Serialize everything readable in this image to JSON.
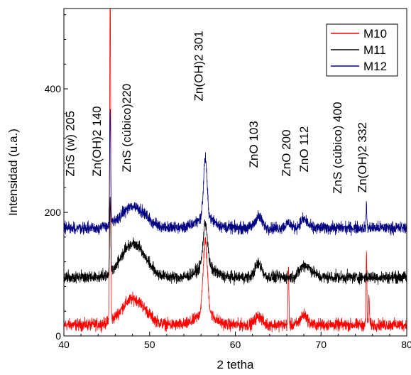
{
  "chart_data": {
    "type": "line",
    "title": "",
    "xlabel": "2 tetha",
    "ylabel": "Intensidad (u.a.)",
    "xlim": [
      40,
      80
    ],
    "ylim": [
      0,
      530
    ],
    "x_ticks": [
      40,
      50,
      60,
      70,
      80
    ],
    "y_ticks": [
      0,
      200,
      400
    ],
    "legend": {
      "placement": "top-right",
      "entries": [
        "M10",
        "M11",
        "M12"
      ]
    },
    "series": [
      {
        "name": "M10",
        "color": "#ff0000",
        "baseline": 18,
        "noise": 6,
        "peaks": [
          [
            45.4,
            540,
            0.06
          ],
          [
            48.1,
            42,
            1.4
          ],
          [
            56.5,
            115,
            0.25
          ],
          [
            56.5,
            20,
            1.0
          ],
          [
            62.7,
            14,
            0.4
          ],
          [
            66.2,
            95,
            0.05
          ],
          [
            68.0,
            16,
            0.4
          ],
          [
            75.3,
            118,
            0.05
          ],
          [
            75.6,
            45,
            0.05
          ]
        ]
      },
      {
        "name": "M11",
        "color": "#000000",
        "baseline": 95,
        "noise": 6,
        "peaks": [
          [
            45.4,
            120,
            0.06
          ],
          [
            48.1,
            55,
            1.4
          ],
          [
            56.5,
            70,
            0.25
          ],
          [
            56.5,
            18,
            1.0
          ],
          [
            62.7,
            22,
            0.4
          ],
          [
            68.0,
            18,
            0.5
          ],
          [
            68.9,
            8,
            0.5
          ]
        ]
      },
      {
        "name": "M12",
        "color": "#000080",
        "baseline": 175,
        "noise": 6,
        "peaks": [
          [
            45.4,
            185,
            0.06
          ],
          [
            48.1,
            35,
            1.4
          ],
          [
            56.5,
            95,
            0.2
          ],
          [
            56.5,
            18,
            1.0
          ],
          [
            62.7,
            18,
            0.4
          ],
          [
            66.2,
            8,
            0.3
          ],
          [
            68.0,
            14,
            0.4
          ],
          [
            75.3,
            35,
            0.05
          ]
        ]
      }
    ],
    "annotations": [
      {
        "text": "ZnS (w) 205",
        "x": 41.2,
        "y": 258
      },
      {
        "text": "Zn(OH)2  140",
        "x": 44.3,
        "y": 258
      },
      {
        "text": "ZnS (cúbico)220",
        "x": 47.8,
        "y": 265
      },
      {
        "text": "Zn(OH)2   301",
        "x": 56.2,
        "y": 380
      },
      {
        "text": "ZnO 103",
        "x": 62.6,
        "y": 272
      },
      {
        "text": "ZnO 200",
        "x": 66.4,
        "y": 258
      },
      {
        "text": "ZnO 112",
        "x": 68.5,
        "y": 265
      },
      {
        "text": "ZnS (cúbico) 400",
        "x": 72.4,
        "y": 230
      },
      {
        "text": "Zn(OH)2  332",
        "x": 75.3,
        "y": 232
      }
    ]
  }
}
